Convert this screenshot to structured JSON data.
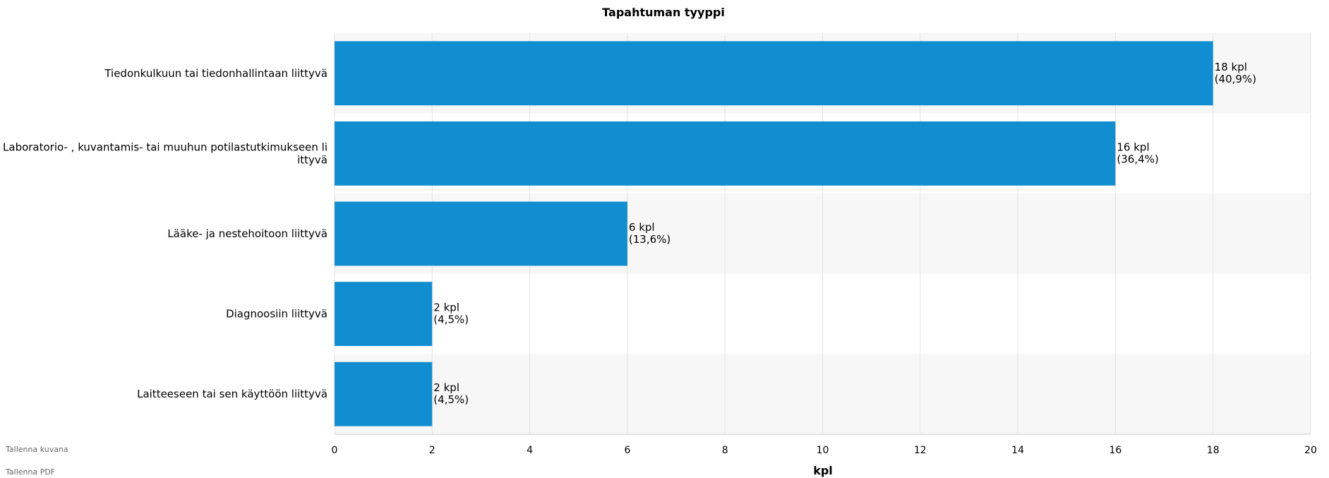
{
  "chart_data": {
    "type": "bar",
    "orientation": "horizontal",
    "title": "Tapahtuman tyyppi",
    "categories": [
      "Tiedonkulkuun tai tiedonhallintaan liittyvä",
      "Laboratorio- , kuvantamis- tai muuhun potilastutkimukseen liittyvä",
      "Lääke- ja nestehoitoon liittyvä",
      "Diagnoosiin liittyvä",
      "Laitteeseen tai sen käyttöön liittyvä"
    ],
    "category_label_lines": [
      [
        "Tiedonkulkuun tai tiedonhallintaan liittyvä"
      ],
      [
        "Laboratorio- , kuvantamis- tai muuhun potilastutkimukseen li",
        "ittyvä"
      ],
      [
        "Lääke- ja nestehoitoon liittyvä"
      ],
      [
        "Diagnoosiin liittyvä"
      ],
      [
        "Laitteeseen tai sen käyttöön liittyvä"
      ]
    ],
    "values": [
      18,
      16,
      6,
      2,
      2
    ],
    "data_labels": [
      [
        "18 kpl",
        "(40,9%)"
      ],
      [
        "16 kpl",
        "(36,4%)"
      ],
      [
        "6 kpl",
        "(13,6%)"
      ],
      [
        "2 kpl",
        "(4,5%)"
      ],
      [
        "2 kpl",
        "(4,5%)"
      ]
    ],
    "xlabel": "kpl",
    "ylabel": "",
    "xlim": [
      0,
      20
    ],
    "ticks": [
      "0",
      "2",
      "4",
      "6",
      "8",
      "10",
      "12",
      "14",
      "16",
      "18",
      "20"
    ],
    "grid": true,
    "legend": "none",
    "colors": {
      "bar": "#118ecf",
      "band": "#f7f7f7",
      "grid": "#e3e3e3",
      "axis": "#cccccc"
    }
  },
  "export": {
    "image_label": "Tallenna kuvana",
    "pdf_label": "Tallenna PDF"
  }
}
